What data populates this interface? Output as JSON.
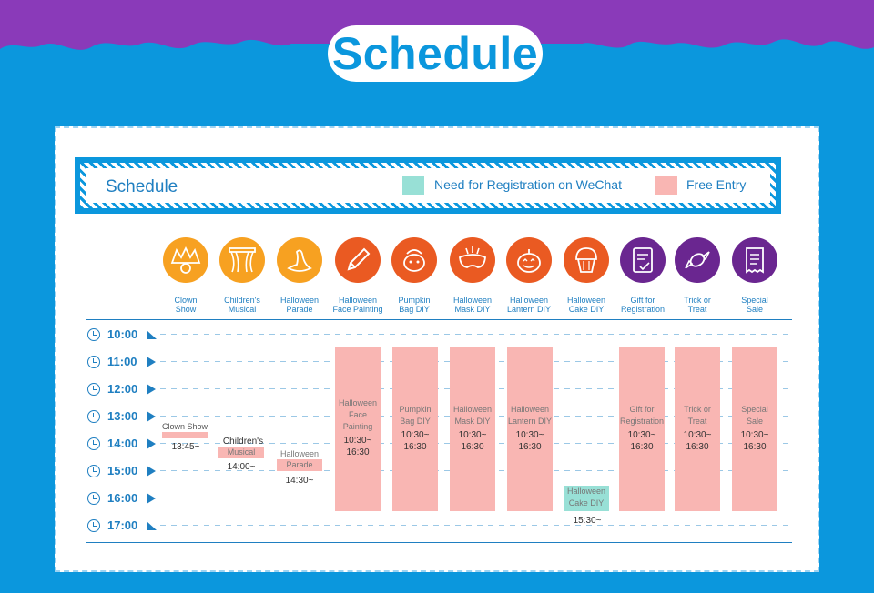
{
  "hero": {
    "title": "Schedule"
  },
  "legend": {
    "title": "Schedule",
    "items": [
      {
        "label": "Need for Registration on WeChat",
        "color": "#98e0d6"
      },
      {
        "label": "Free Entry",
        "color": "#f9b6b3"
      }
    ]
  },
  "activities": [
    {
      "name": "Clown\nShow",
      "color": "#f7a121",
      "icon": "jester-icon"
    },
    {
      "name": "Children's\nMusical",
      "color": "#f7a121",
      "icon": "theater-curtain-icon"
    },
    {
      "name": "Halloween\nParade",
      "color": "#f7a121",
      "icon": "witch-hat-icon"
    },
    {
      "name": "Halloween\nFace Painting",
      "color": "#ea5a22",
      "icon": "pencil-icon"
    },
    {
      "name": "Pumpkin\nBag DIY",
      "color": "#ea5a22",
      "icon": "pumpkin-bag-icon"
    },
    {
      "name": "Halloween\nMask DIY",
      "color": "#ea5a22",
      "icon": "mask-icon"
    },
    {
      "name": "Halloween\nLantern DIY",
      "color": "#ea5a22",
      "icon": "pumpkin-lantern-icon"
    },
    {
      "name": "Halloween\nCake DIY",
      "color": "#ea5a22",
      "icon": "cupcake-icon"
    },
    {
      "name": "Gift for\nRegistration",
      "color": "#6a2690",
      "icon": "gift-form-icon"
    },
    {
      "name": "Trick or\nTreat",
      "color": "#6a2690",
      "icon": "candy-icon"
    },
    {
      "name": "Special\nSale",
      "color": "#6a2690",
      "icon": "receipt-icon"
    }
  ],
  "times": [
    "10:00",
    "11:00",
    "12:00",
    "13:00",
    "14:00",
    "15:00",
    "16:00",
    "17:00"
  ],
  "events": {
    "clown": {
      "label": "Clown Show",
      "time": "13:45~"
    },
    "musical": {
      "label1": "Children's",
      "label2": "Musical",
      "time": "14:00~"
    },
    "parade": {
      "label1": "Halloween",
      "label2": "Parade",
      "time": "14:30~"
    },
    "face": {
      "label": "Halloween\nFace\nPainting",
      "time": "10:30~\n16:30"
    },
    "pumpkin": {
      "label": "Pumpkin\nBag DIY",
      "time": "10:30~\n16:30"
    },
    "mask": {
      "label": "Halloween\nMask DIY",
      "time": "10:30~\n16:30"
    },
    "lantern": {
      "label": "Halloween\nLantern DIY",
      "time": "10:30~\n16:30"
    },
    "cake": {
      "label": "Halloween\nCake DIY",
      "time": "15:30~"
    },
    "gift": {
      "label": "Gift for\nRegistration",
      "time": "10:30~\n16:30"
    },
    "trick": {
      "label": "Trick or\nTreat",
      "time": "10:30~\n16:30"
    },
    "sale": {
      "label": "Special\nSale",
      "time": "10:30~\n16:30"
    }
  }
}
